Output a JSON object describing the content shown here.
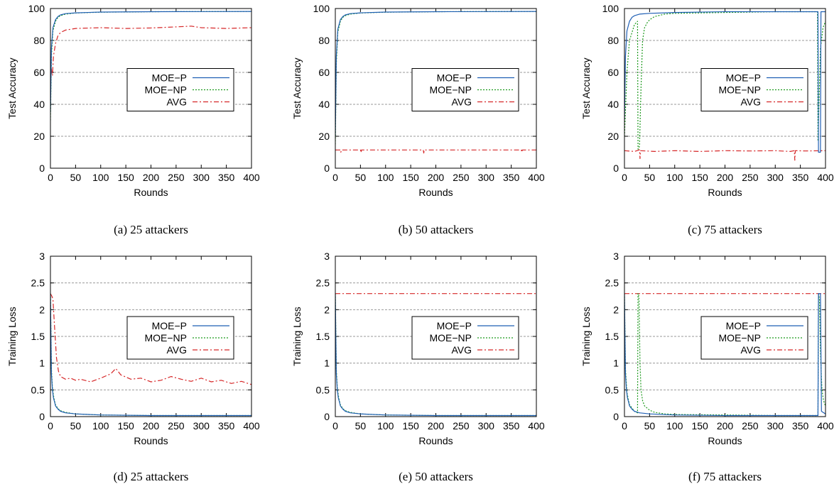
{
  "colors": {
    "moe_p": "#1f5fb4",
    "moe_np": "#1e9a1e",
    "avg": "#d62728",
    "grid": "#9a9a9a"
  },
  "legend": {
    "items": [
      "MOE−P",
      "MOE−NP",
      "AVG"
    ],
    "placement": "right-middle"
  },
  "chart_data": [
    {
      "type": "line",
      "panel": "a",
      "caption": "(a) 25 attackers",
      "xlabel": "Rounds",
      "ylabel": "Test Accuracy",
      "xlim": [
        0,
        400
      ],
      "ylim": [
        0,
        100
      ],
      "xticks": [
        0,
        50,
        100,
        150,
        200,
        250,
        300,
        350,
        400
      ],
      "yticks": [
        0,
        20,
        40,
        60,
        80,
        100
      ],
      "ytick_labels": [
        "0",
        "20",
        "40",
        "60",
        "80",
        "100"
      ],
      "grid": true,
      "series": [
        {
          "name": "MOE−P",
          "x": [
            0,
            2,
            5,
            10,
            15,
            20,
            30,
            50,
            100,
            200,
            300,
            400
          ],
          "y": [
            35,
            75,
            88,
            93,
            95,
            96,
            96.8,
            97.3,
            97.8,
            98,
            98.1,
            98.2
          ]
        },
        {
          "name": "MOE−NP",
          "x": [
            0,
            2,
            5,
            10,
            15,
            20,
            30,
            50,
            100,
            200,
            300,
            400
          ],
          "y": [
            30,
            70,
            86,
            92,
            94.5,
            95.5,
            96.5,
            97.2,
            97.7,
            98,
            98.1,
            98.2
          ]
        },
        {
          "name": "AVG",
          "x": [
            0,
            2,
            4,
            6,
            10,
            15,
            20,
            30,
            50,
            100,
            150,
            200,
            250,
            280,
            300,
            350,
            400
          ],
          "y": [
            55,
            62,
            58,
            70,
            78,
            83,
            85,
            86.5,
            87.5,
            88,
            87.5,
            87.8,
            88.5,
            89,
            88,
            87.5,
            88
          ]
        }
      ]
    },
    {
      "type": "line",
      "panel": "b",
      "caption": "(b) 50 attackers",
      "xlabel": "Rounds",
      "ylabel": "Test Accuracy",
      "xlim": [
        0,
        400
      ],
      "ylim": [
        0,
        100
      ],
      "xticks": [
        0,
        50,
        100,
        150,
        200,
        250,
        300,
        350,
        400
      ],
      "yticks": [
        0,
        20,
        40,
        60,
        80,
        100
      ],
      "ytick_labels": [
        "0",
        "20",
        "40",
        "60",
        "80",
        "100"
      ],
      "grid": true,
      "series": [
        {
          "name": "MOE−P",
          "x": [
            0,
            2,
            5,
            10,
            15,
            20,
            30,
            50,
            100,
            200,
            300,
            400
          ],
          "y": [
            20,
            70,
            87,
            93,
            95,
            96,
            96.8,
            97.3,
            97.8,
            98,
            98.1,
            98.2
          ]
        },
        {
          "name": "MOE−NP",
          "x": [
            0,
            2,
            5,
            10,
            15,
            20,
            30,
            50,
            100,
            200,
            300,
            400
          ],
          "y": [
            15,
            65,
            85,
            92,
            94.5,
            95.5,
            96.5,
            97.2,
            97.7,
            98,
            98.1,
            98.2
          ]
        },
        {
          "name": "AVG",
          "x": [
            0,
            10,
            11,
            12,
            30,
            50,
            51,
            52,
            60,
            70,
            90,
            100,
            120,
            175,
            176,
            177,
            200,
            250,
            300,
            350,
            370,
            371,
            372,
            400
          ],
          "y": [
            11.4,
            11.4,
            10,
            11.4,
            11.4,
            11.4,
            9.8,
            11.4,
            11.4,
            11.4,
            11.4,
            11.4,
            11.4,
            11.4,
            9.5,
            11.4,
            11.4,
            11.4,
            11.4,
            11.4,
            11.4,
            10,
            11.4,
            11.4
          ]
        }
      ]
    },
    {
      "type": "line",
      "panel": "c",
      "caption": "(c) 75 attackers",
      "xlabel": "Rounds",
      "ylabel": "Test Accuracy",
      "xlim": [
        0,
        400
      ],
      "ylim": [
        0,
        100
      ],
      "xticks": [
        0,
        50,
        100,
        150,
        200,
        250,
        300,
        350,
        400
      ],
      "yticks": [
        0,
        20,
        40,
        60,
        80,
        100
      ],
      "ytick_labels": [
        "0",
        "20",
        "40",
        "60",
        "80",
        "100"
      ],
      "grid": true,
      "series": [
        {
          "name": "MOE−P",
          "x": [
            0,
            2,
            5,
            10,
            15,
            20,
            30,
            50,
            100,
            200,
            300,
            380,
            385,
            386,
            390,
            391,
            400
          ],
          "y": [
            30,
            70,
            86,
            92,
            94.5,
            95.5,
            96.5,
            97,
            97.5,
            98,
            98,
            98,
            98,
            10,
            10,
            98,
            98
          ]
        },
        {
          "name": "MOE−NP",
          "x": [
            0,
            5,
            10,
            20,
            26,
            27,
            28,
            30,
            33,
            36,
            40,
            45,
            50,
            60,
            80,
            100,
            200,
            300,
            380,
            384,
            385,
            387,
            390,
            395,
            400
          ],
          "y": [
            20,
            60,
            80,
            90,
            92,
            12,
            12,
            14,
            50,
            80,
            88,
            91,
            93,
            95,
            96.5,
            97,
            97.5,
            98,
            98,
            98,
            17,
            40,
            75,
            88,
            92
          ]
        },
        {
          "name": "AVG",
          "x": [
            0,
            20,
            30,
            31,
            32,
            60,
            100,
            150,
            200,
            250,
            300,
            330,
            338,
            339,
            340,
            360,
            400
          ],
          "y": [
            11,
            10.5,
            11.5,
            6,
            11,
            10.5,
            11,
            10.5,
            11,
            10.8,
            11,
            10.5,
            11,
            5,
            11,
            10.8,
            11
          ]
        }
      ]
    },
    {
      "type": "line",
      "panel": "d",
      "caption": "(d) 25 attackers",
      "xlabel": "Rounds",
      "ylabel": "Training Loss",
      "xlim": [
        0,
        400
      ],
      "ylim": [
        0,
        3
      ],
      "xticks": [
        0,
        50,
        100,
        150,
        200,
        250,
        300,
        350,
        400
      ],
      "yticks": [
        0,
        0.5,
        1,
        1.5,
        2,
        2.5,
        3
      ],
      "ytick_labels": [
        "0",
        "0.5",
        "1",
        "1.5",
        "2",
        "2.5",
        "3"
      ],
      "grid": true,
      "series": [
        {
          "name": "MOE−P",
          "x": [
            0,
            1,
            2,
            4,
            6,
            8,
            10,
            15,
            20,
            30,
            50,
            100,
            200,
            300,
            400
          ],
          "y": [
            2.3,
            1.5,
            0.8,
            0.5,
            0.35,
            0.28,
            0.2,
            0.14,
            0.1,
            0.07,
            0.05,
            0.03,
            0.02,
            0.02,
            0.02
          ]
        },
        {
          "name": "MOE−NP",
          "x": [
            0,
            1,
            2,
            4,
            6,
            8,
            10,
            15,
            20,
            30,
            50,
            100,
            200,
            300,
            400
          ],
          "y": [
            2.3,
            1.6,
            0.9,
            0.55,
            0.4,
            0.3,
            0.22,
            0.15,
            0.11,
            0.08,
            0.05,
            0.03,
            0.02,
            0.02,
            0.02
          ]
        },
        {
          "name": "AVG",
          "x": [
            0,
            3,
            5,
            8,
            12,
            16,
            20,
            30,
            40,
            50,
            60,
            80,
            100,
            120,
            130,
            140,
            160,
            180,
            200,
            220,
            240,
            260,
            280,
            300,
            320,
            340,
            360,
            380,
            400
          ],
          "y": [
            2.3,
            2.25,
            2.2,
            1.7,
            1.1,
            0.85,
            0.75,
            0.7,
            0.72,
            0.68,
            0.7,
            0.65,
            0.72,
            0.8,
            0.9,
            0.78,
            0.7,
            0.72,
            0.65,
            0.68,
            0.75,
            0.7,
            0.66,
            0.72,
            0.65,
            0.68,
            0.62,
            0.66,
            0.6
          ]
        }
      ]
    },
    {
      "type": "line",
      "panel": "e",
      "caption": "(e) 50 attackers",
      "xlabel": "Rounds",
      "ylabel": "Training Loss",
      "xlim": [
        0,
        400
      ],
      "ylim": [
        0,
        3
      ],
      "xticks": [
        0,
        50,
        100,
        150,
        200,
        250,
        300,
        350,
        400
      ],
      "yticks": [
        0,
        0.5,
        1,
        1.5,
        2,
        2.5,
        3
      ],
      "ytick_labels": [
        "0",
        "0.5",
        "1",
        "1.5",
        "2",
        "2.5",
        "3"
      ],
      "grid": true,
      "series": [
        {
          "name": "MOE−P",
          "x": [
            0,
            1,
            2,
            4,
            6,
            8,
            10,
            15,
            20,
            30,
            50,
            100,
            200,
            300,
            400
          ],
          "y": [
            2.3,
            1.5,
            0.8,
            0.5,
            0.35,
            0.28,
            0.2,
            0.14,
            0.1,
            0.07,
            0.05,
            0.03,
            0.02,
            0.02,
            0.02
          ]
        },
        {
          "name": "MOE−NP",
          "x": [
            0,
            1,
            2,
            4,
            6,
            8,
            10,
            15,
            20,
            30,
            50,
            100,
            200,
            300,
            400
          ],
          "y": [
            2.3,
            1.6,
            0.9,
            0.55,
            0.4,
            0.3,
            0.22,
            0.15,
            0.11,
            0.08,
            0.05,
            0.03,
            0.02,
            0.02,
            0.02
          ]
        },
        {
          "name": "AVG",
          "x": [
            0,
            100,
            200,
            300,
            400
          ],
          "y": [
            2.3,
            2.3,
            2.3,
            2.3,
            2.3
          ]
        }
      ]
    },
    {
      "type": "line",
      "panel": "f",
      "caption": "(f) 75 attackers",
      "xlabel": "Rounds",
      "ylabel": "Training Loss",
      "xlim": [
        0,
        400
      ],
      "ylim": [
        0,
        3
      ],
      "xticks": [
        0,
        50,
        100,
        150,
        200,
        250,
        300,
        350,
        400
      ],
      "yticks": [
        0,
        0.5,
        1,
        1.5,
        2,
        2.5,
        3
      ],
      "ytick_labels": [
        "0",
        "0.5",
        "1",
        "1.5",
        "2",
        "2.5",
        "3"
      ],
      "grid": true,
      "series": [
        {
          "name": "MOE−P",
          "x": [
            0,
            1,
            2,
            4,
            6,
            8,
            10,
            15,
            20,
            30,
            50,
            100,
            200,
            300,
            385,
            386,
            388,
            390,
            392,
            400
          ],
          "y": [
            2.3,
            1.5,
            0.8,
            0.5,
            0.35,
            0.28,
            0.2,
            0.14,
            0.1,
            0.07,
            0.05,
            0.03,
            0.02,
            0.02,
            0.02,
            2.3,
            2.3,
            2.3,
            0.1,
            0.05
          ]
        },
        {
          "name": "MOE−NP",
          "x": [
            0,
            2,
            5,
            10,
            20,
            26,
            27,
            28,
            29,
            31,
            33,
            36,
            40,
            50,
            60,
            80,
            100,
            200,
            300,
            385,
            386,
            388,
            390,
            393,
            396,
            400
          ],
          "y": [
            2.3,
            0.9,
            0.45,
            0.22,
            0.1,
            0.07,
            2.3,
            2.3,
            2.2,
            1.0,
            0.5,
            0.3,
            0.2,
            0.12,
            0.08,
            0.05,
            0.04,
            0.03,
            0.02,
            0.02,
            2.3,
            2.2,
            1.2,
            0.5,
            0.3,
            0.2
          ]
        },
        {
          "name": "AVG",
          "x": [
            0,
            100,
            200,
            300,
            400
          ],
          "y": [
            2.3,
            2.3,
            2.3,
            2.3,
            2.3
          ]
        }
      ]
    }
  ]
}
